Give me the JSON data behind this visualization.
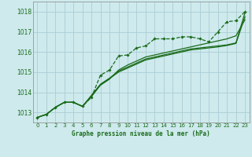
{
  "title": "Graphe pression niveau de la mer (hPa)",
  "bg_color": "#ceeaed",
  "grid_color": "#aacdd4",
  "line_color": "#1a6b1a",
  "xlim": [
    -0.5,
    23.5
  ],
  "ylim": [
    1012.5,
    1018.5
  ],
  "yticks": [
    1013,
    1014,
    1015,
    1016,
    1017,
    1018
  ],
  "xticks": [
    0,
    1,
    2,
    3,
    4,
    5,
    6,
    7,
    8,
    9,
    10,
    11,
    12,
    13,
    14,
    15,
    16,
    17,
    18,
    19,
    20,
    21,
    22,
    23
  ],
  "series_dotted": [
    1012.75,
    1012.9,
    1013.25,
    1013.5,
    1013.5,
    1013.3,
    1013.75,
    1014.85,
    1015.1,
    1015.8,
    1015.85,
    1016.2,
    1016.3,
    1016.65,
    1016.65,
    1016.65,
    1016.75,
    1016.75,
    1016.65,
    1016.5,
    1017.0,
    1017.5,
    1017.55,
    1018.0
  ],
  "series_line1": [
    1012.75,
    1012.9,
    1013.25,
    1013.5,
    1013.5,
    1013.3,
    1013.8,
    1014.35,
    1014.65,
    1015.1,
    1015.35,
    1015.55,
    1015.75,
    1015.85,
    1015.95,
    1016.05,
    1016.15,
    1016.25,
    1016.35,
    1016.45,
    1016.55,
    1016.65,
    1016.8,
    1017.6
  ],
  "series_line2": [
    1012.75,
    1012.9,
    1013.25,
    1013.5,
    1013.5,
    1013.3,
    1013.85,
    1014.4,
    1014.7,
    1015.05,
    1015.25,
    1015.45,
    1015.65,
    1015.75,
    1015.85,
    1015.95,
    1016.05,
    1016.15,
    1016.2,
    1016.25,
    1016.3,
    1016.35,
    1016.45,
    1017.95
  ],
  "series_line3": [
    1012.75,
    1012.9,
    1013.25,
    1013.5,
    1013.5,
    1013.3,
    1013.78,
    1014.38,
    1014.68,
    1015.0,
    1015.2,
    1015.4,
    1015.6,
    1015.7,
    1015.8,
    1015.9,
    1016.0,
    1016.1,
    1016.15,
    1016.2,
    1016.25,
    1016.32,
    1016.42,
    1017.75
  ]
}
